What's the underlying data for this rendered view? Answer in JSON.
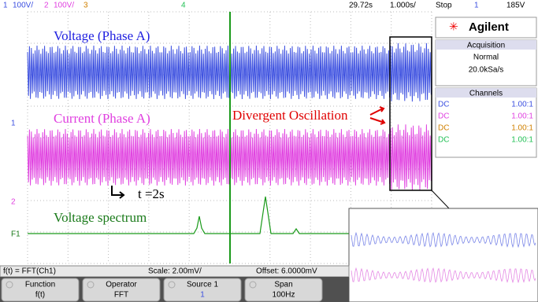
{
  "top_bar": {
    "ch1": "1",
    "ch1_scale": "100V/",
    "ch2": "2",
    "ch2_scale": "100V/",
    "ch3": "3",
    "ch4": "4",
    "time": "29.72s",
    "timebase": "1.000s/",
    "status": "Stop",
    "trigger_source": "1",
    "trigger_level": "185V"
  },
  "markers": {
    "ch1": "1",
    "ch2": "2",
    "math": "F1"
  },
  "annotations": {
    "voltage": "Voltage (Phase A)",
    "current": "Current (Phase A)",
    "divergent": "Divergent  Oscillation",
    "time": "t =2s",
    "spectrum": "Voltage spectrum"
  },
  "panel": {
    "brand": "Agilent",
    "acquisition_title": "Acquisition",
    "mode": "Normal",
    "rate": "20.0kSa/s",
    "channels_title": "Channels",
    "channels": [
      {
        "coupling": "DC",
        "probe": "1.00:1"
      },
      {
        "coupling": "DC",
        "probe": "1.00:1"
      },
      {
        "coupling": "DC",
        "probe": "1.00:1"
      },
      {
        "coupling": "DC",
        "probe": "1.00:1"
      }
    ]
  },
  "status_bar": {
    "function": "f(t) = FFT(Ch1)",
    "scale": "Scale: 2.00mV/",
    "offset": "Offset: 6.0000mV"
  },
  "softkeys": [
    {
      "label": "Function",
      "value": "f(t)"
    },
    {
      "label": "Operator",
      "value": "FFT"
    },
    {
      "label": "Source 1",
      "value": "1"
    },
    {
      "label": "Span",
      "value": "100Hz"
    }
  ]
}
